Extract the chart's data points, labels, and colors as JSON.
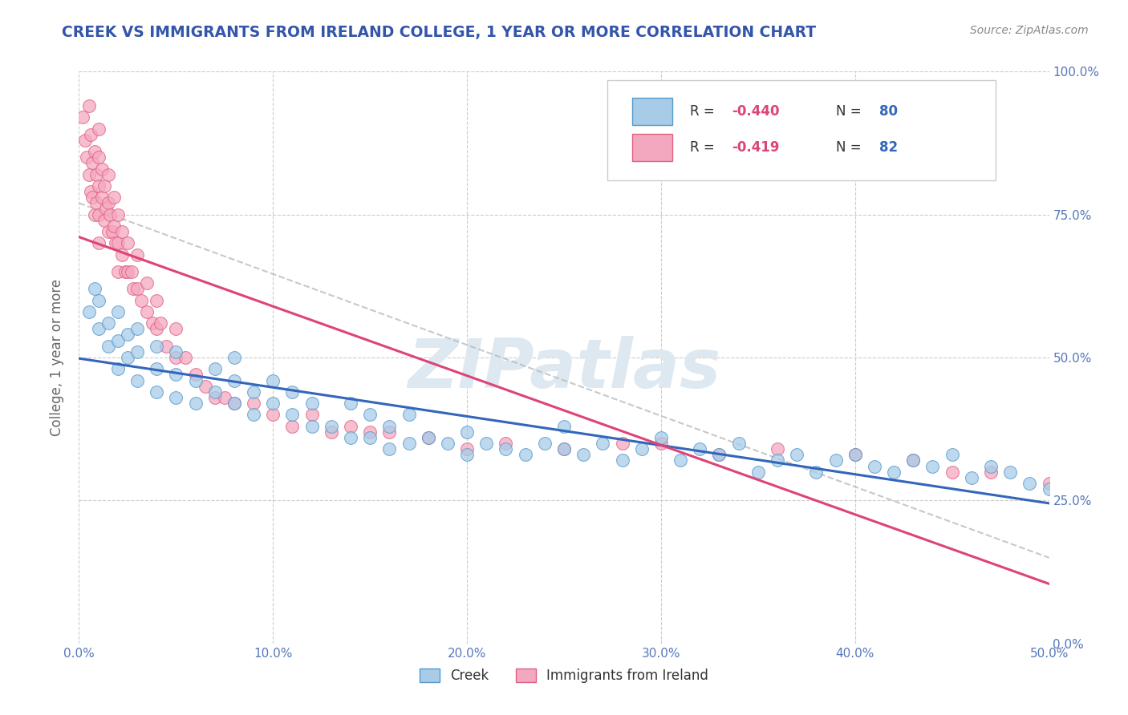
{
  "title": "CREEK VS IMMIGRANTS FROM IRELAND COLLEGE, 1 YEAR OR MORE CORRELATION CHART",
  "source_text": "Source: ZipAtlas.com",
  "ylabel": "College, 1 year or more",
  "xlim": [
    0.0,
    0.5
  ],
  "ylim": [
    0.0,
    1.0
  ],
  "xticks": [
    0.0,
    0.1,
    0.2,
    0.3,
    0.4,
    0.5
  ],
  "xticklabels": [
    "0.0%",
    "10.0%",
    "20.0%",
    "30.0%",
    "40.0%",
    "50.0%"
  ],
  "yticks": [
    0.0,
    0.25,
    0.5,
    0.75,
    1.0
  ],
  "yticklabels": [
    "0.0%",
    "25.0%",
    "50.0%",
    "75.0%",
    "100.0%"
  ],
  "creek_color": "#a8cce8",
  "ireland_color": "#f4a8c0",
  "creek_edge_color": "#5599cc",
  "ireland_edge_color": "#e06080",
  "creek_line_color": "#3366bb",
  "ireland_line_color": "#dd4477",
  "background_color": "#ffffff",
  "grid_color": "#cccccc",
  "title_color": "#3355aa",
  "tick_color": "#5577bb",
  "watermark_color": "#dde8f0",
  "dash_color": "#bbbbbb",
  "creek_scatter_x": [
    0.005,
    0.008,
    0.01,
    0.01,
    0.015,
    0.015,
    0.02,
    0.02,
    0.02,
    0.025,
    0.025,
    0.03,
    0.03,
    0.03,
    0.04,
    0.04,
    0.04,
    0.05,
    0.05,
    0.05,
    0.06,
    0.06,
    0.07,
    0.07,
    0.08,
    0.08,
    0.08,
    0.09,
    0.09,
    0.1,
    0.1,
    0.11,
    0.11,
    0.12,
    0.12,
    0.13,
    0.14,
    0.14,
    0.15,
    0.15,
    0.16,
    0.16,
    0.17,
    0.17,
    0.18,
    0.19,
    0.2,
    0.2,
    0.21,
    0.22,
    0.23,
    0.24,
    0.25,
    0.25,
    0.26,
    0.27,
    0.28,
    0.29,
    0.3,
    0.31,
    0.32,
    0.33,
    0.34,
    0.35,
    0.36,
    0.37,
    0.38,
    0.39,
    0.4,
    0.41,
    0.42,
    0.43,
    0.44,
    0.45,
    0.46,
    0.47,
    0.48,
    0.49,
    0.5
  ],
  "creek_scatter_y": [
    0.58,
    0.62,
    0.55,
    0.6,
    0.52,
    0.56,
    0.48,
    0.53,
    0.58,
    0.5,
    0.54,
    0.46,
    0.51,
    0.55,
    0.44,
    0.48,
    0.52,
    0.43,
    0.47,
    0.51,
    0.42,
    0.46,
    0.44,
    0.48,
    0.42,
    0.46,
    0.5,
    0.4,
    0.44,
    0.42,
    0.46,
    0.4,
    0.44,
    0.38,
    0.42,
    0.38,
    0.36,
    0.42,
    0.36,
    0.4,
    0.34,
    0.38,
    0.35,
    0.4,
    0.36,
    0.35,
    0.33,
    0.37,
    0.35,
    0.34,
    0.33,
    0.35,
    0.34,
    0.38,
    0.33,
    0.35,
    0.32,
    0.34,
    0.36,
    0.32,
    0.34,
    0.33,
    0.35,
    0.3,
    0.32,
    0.33,
    0.3,
    0.32,
    0.33,
    0.31,
    0.3,
    0.32,
    0.31,
    0.33,
    0.29,
    0.31,
    0.3,
    0.28,
    0.27
  ],
  "ireland_scatter_x": [
    0.002,
    0.003,
    0.004,
    0.005,
    0.005,
    0.006,
    0.006,
    0.007,
    0.007,
    0.008,
    0.008,
    0.009,
    0.009,
    0.01,
    0.01,
    0.01,
    0.01,
    0.01,
    0.012,
    0.012,
    0.013,
    0.013,
    0.014,
    0.015,
    0.015,
    0.015,
    0.016,
    0.017,
    0.018,
    0.018,
    0.019,
    0.02,
    0.02,
    0.02,
    0.022,
    0.022,
    0.024,
    0.025,
    0.025,
    0.027,
    0.028,
    0.03,
    0.03,
    0.032,
    0.035,
    0.035,
    0.038,
    0.04,
    0.04,
    0.042,
    0.045,
    0.05,
    0.05,
    0.055,
    0.06,
    0.065,
    0.07,
    0.075,
    0.08,
    0.09,
    0.1,
    0.11,
    0.12,
    0.13,
    0.14,
    0.15,
    0.16,
    0.18,
    0.2,
    0.22,
    0.25,
    0.28,
    0.3,
    0.33,
    0.36,
    0.4,
    0.43,
    0.45,
    0.47,
    0.5
  ],
  "ireland_scatter_y": [
    0.92,
    0.88,
    0.85,
    0.94,
    0.82,
    0.89,
    0.79,
    0.84,
    0.78,
    0.86,
    0.75,
    0.82,
    0.77,
    0.9,
    0.85,
    0.8,
    0.75,
    0.7,
    0.83,
    0.78,
    0.8,
    0.74,
    0.76,
    0.82,
    0.77,
    0.72,
    0.75,
    0.72,
    0.78,
    0.73,
    0.7,
    0.75,
    0.7,
    0.65,
    0.72,
    0.68,
    0.65,
    0.7,
    0.65,
    0.65,
    0.62,
    0.68,
    0.62,
    0.6,
    0.63,
    0.58,
    0.56,
    0.6,
    0.55,
    0.56,
    0.52,
    0.55,
    0.5,
    0.5,
    0.47,
    0.45,
    0.43,
    0.43,
    0.42,
    0.42,
    0.4,
    0.38,
    0.4,
    0.37,
    0.38,
    0.37,
    0.37,
    0.36,
    0.34,
    0.35,
    0.34,
    0.35,
    0.35,
    0.33,
    0.34,
    0.33,
    0.32,
    0.3,
    0.3,
    0.28
  ]
}
